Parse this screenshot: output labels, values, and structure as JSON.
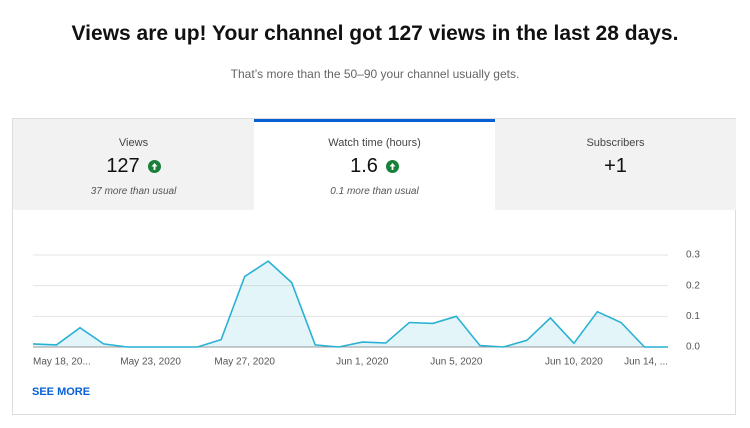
{
  "header": {
    "title": "Views are up! Your channel got 127 views in the last 28 days.",
    "subtitle": "That’s more than the 50–90 your channel usually gets."
  },
  "tabs": [
    {
      "label": "Views",
      "value": "127",
      "note": "37 more than usual"
    },
    {
      "label": "Watch time (hours)",
      "value": "1.6",
      "note": "0.1 more than usual"
    },
    {
      "label": "Subscribers",
      "value": "+1"
    }
  ],
  "link": "SEE MORE",
  "chart_data": {
    "type": "line",
    "categories": [
      "May 18, 20...",
      null,
      null,
      null,
      null,
      "May 23, 2020",
      null,
      null,
      null,
      "May 27, 2020",
      null,
      null,
      null,
      null,
      "Jun 1, 2020",
      null,
      null,
      null,
      "Jun 5, 2020",
      null,
      null,
      null,
      null,
      "Jun 10, 2020",
      null,
      null,
      null,
      "Jun 14, ..."
    ],
    "values": [
      0.01,
      0.007,
      0.063,
      0.01,
      0,
      0,
      0,
      0,
      0.024,
      0.23,
      0.28,
      0.21,
      0.007,
      0,
      0.016,
      0.013,
      0.08,
      0.077,
      0.1,
      0.005,
      0,
      0.022,
      0.095,
      0.012,
      0.115,
      0.08,
      0,
      0
    ],
    "color": "#29b1d4",
    "ylim": [
      0,
      0.3
    ],
    "yticks": [
      {
        "value": 0,
        "label": "0.0"
      },
      0.1,
      0.2,
      0.3
    ],
    "grid": true
  }
}
